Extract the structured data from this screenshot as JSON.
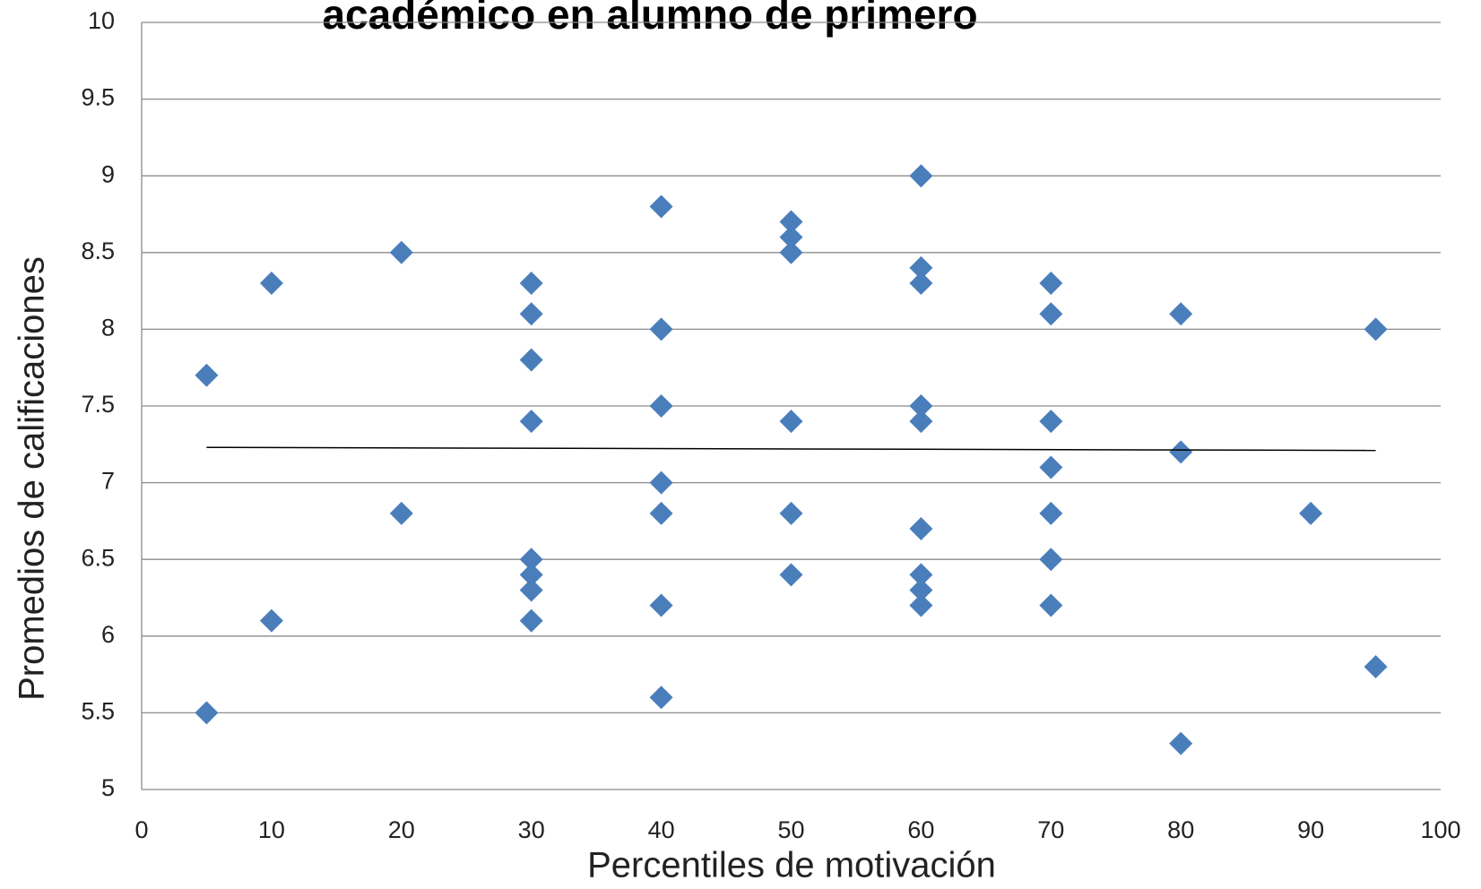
{
  "chart_data": {
    "type": "scatter",
    "title": "académico en alumno de primero",
    "x_label": "Percentiles de motivación",
    "y_label": "Promedios de calificaciones",
    "x": [
      5,
      5,
      10,
      10,
      20,
      20,
      30,
      30,
      30,
      30,
      30,
      30,
      30,
      30,
      40,
      40,
      40,
      40,
      40,
      40,
      40,
      50,
      50,
      50,
      50,
      50,
      50,
      60,
      60,
      60,
      60,
      60,
      60,
      60,
      60,
      60,
      70,
      70,
      70,
      70,
      70,
      70,
      70,
      80,
      80,
      80,
      90,
      95,
      95
    ],
    "series": [
      {
        "color": "#4a7ebb",
        "values": [
          7.7,
          5.5,
          8.3,
          6.1,
          8.5,
          6.8,
          8.3,
          8.1,
          7.8,
          7.4,
          6.5,
          6.4,
          6.3,
          6.1,
          8.8,
          8.0,
          7.5,
          7.0,
          6.8,
          6.2,
          5.6,
          8.7,
          8.6,
          8.5,
          7.4,
          6.8,
          6.4,
          9.0,
          8.4,
          8.3,
          7.5,
          7.4,
          6.7,
          6.4,
          6.3,
          6.2,
          8.3,
          8.1,
          7.4,
          7.1,
          6.8,
          6.5,
          6.2,
          8.1,
          7.2,
          5.3,
          6.8,
          8.0,
          5.8
        ]
      }
    ],
    "trendline": {
      "x": [
        5,
        95
      ],
      "y": [
        7.23,
        7.21
      ],
      "color": "#000000"
    },
    "xlim": [
      0,
      100
    ],
    "xticks": [
      0,
      10,
      20,
      30,
      40,
      50,
      60,
      70,
      80,
      90,
      100
    ],
    "ylim": [
      5,
      10
    ],
    "yticks": [
      5,
      5.5,
      6,
      6.5,
      7,
      7.5,
      8,
      8.5,
      9,
      9.5,
      10
    ],
    "grid": true
  }
}
